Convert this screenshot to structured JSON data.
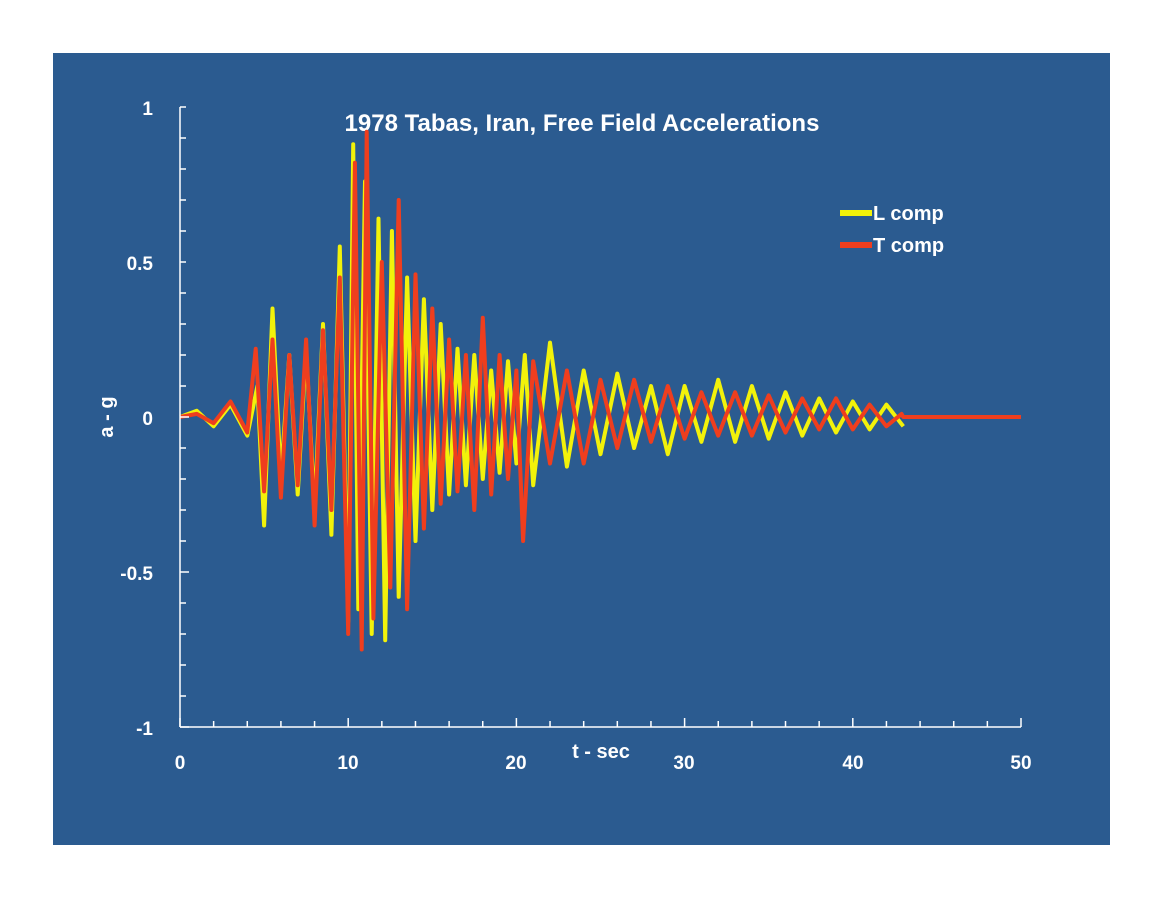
{
  "chart_data": {
    "type": "line",
    "title": "1978 Tabas, Iran, Free Field Accelerations",
    "xlabel": "t - sec",
    "ylabel": "a - g",
    "xlim": [
      0,
      50
    ],
    "ylim": [
      -1,
      1
    ],
    "x_ticks": [
      "0",
      "10",
      "20",
      "30",
      "40",
      "50"
    ],
    "y_ticks": [
      "1",
      "0.5",
      "0",
      "-0.5",
      "-1"
    ],
    "legend_position": "top-right",
    "grid": false,
    "series": [
      {
        "name": "L comp",
        "color": "#f2f20a",
        "x": [
          0,
          1,
          2,
          3,
          4,
          4.6,
          5,
          5.5,
          6,
          6.5,
          7,
          7.5,
          8,
          8.5,
          9,
          9.5,
          10,
          10.3,
          10.6,
          11,
          11.4,
          11.8,
          12.2,
          12.6,
          13,
          13.5,
          14,
          14.5,
          15,
          15.5,
          16,
          16.5,
          17,
          17.5,
          18,
          18.5,
          19,
          19.5,
          20,
          20.5,
          21,
          22,
          23,
          24,
          25,
          26,
          27,
          28,
          29,
          30,
          31,
          32,
          33,
          34,
          35,
          36,
          37,
          38,
          39,
          40,
          41,
          42,
          43
        ],
        "y": [
          0,
          0.02,
          -0.03,
          0.04,
          -0.06,
          0.1,
          -0.35,
          0.35,
          -0.2,
          0.2,
          -0.25,
          0.22,
          -0.3,
          0.3,
          -0.38,
          0.55,
          -0.66,
          0.88,
          -0.62,
          0.76,
          -0.7,
          0.64,
          -0.72,
          0.6,
          -0.58,
          0.45,
          -0.4,
          0.38,
          -0.3,
          0.3,
          -0.25,
          0.22,
          -0.22,
          0.2,
          -0.2,
          0.15,
          -0.18,
          0.18,
          -0.15,
          0.2,
          -0.22,
          0.24,
          -0.16,
          0.15,
          -0.12,
          0.14,
          -0.1,
          0.1,
          -0.12,
          0.1,
          -0.08,
          0.12,
          -0.08,
          0.1,
          -0.07,
          0.08,
          -0.06,
          0.06,
          -0.05,
          0.05,
          -0.04,
          0.04,
          -0.03
        ]
      },
      {
        "name": "T comp",
        "color": "#ef3e1e",
        "x": [
          0,
          1,
          2,
          3,
          4,
          4.5,
          5,
          5.5,
          6,
          6.5,
          7,
          7.5,
          8,
          8.5,
          9,
          9.5,
          10,
          10.4,
          10.8,
          11.1,
          11.5,
          12,
          12.5,
          13,
          13.5,
          14,
          14.5,
          15,
          15.5,
          16,
          16.5,
          17,
          17.5,
          18,
          18.5,
          19,
          19.5,
          20,
          20.4,
          21,
          22,
          23,
          24,
          25,
          26,
          27,
          28,
          29,
          30,
          31,
          32,
          33,
          34,
          35,
          36,
          37,
          38,
          39,
          40,
          41,
          42,
          42.9,
          43,
          50
        ],
        "y": [
          0,
          0.01,
          -0.02,
          0.05,
          -0.05,
          0.22,
          -0.24,
          0.25,
          -0.26,
          0.2,
          -0.22,
          0.25,
          -0.35,
          0.28,
          -0.3,
          0.45,
          -0.7,
          0.82,
          -0.75,
          0.92,
          -0.65,
          0.5,
          -0.55,
          0.7,
          -0.62,
          0.46,
          -0.36,
          0.35,
          -0.28,
          0.25,
          -0.24,
          0.2,
          -0.3,
          0.32,
          -0.25,
          0.2,
          -0.2,
          0.15,
          -0.4,
          0.18,
          -0.15,
          0.15,
          -0.15,
          0.12,
          -0.1,
          0.12,
          -0.08,
          0.1,
          -0.07,
          0.08,
          -0.06,
          0.08,
          -0.06,
          0.07,
          -0.05,
          0.06,
          -0.04,
          0.06,
          -0.04,
          0.04,
          -0.03,
          0.01,
          0,
          0
        ]
      }
    ]
  }
}
